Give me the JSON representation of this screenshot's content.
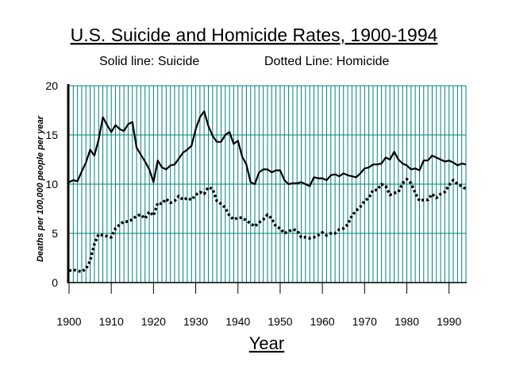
{
  "chart_data": {
    "type": "line",
    "title": "U.S. Suicide and Homicide Rates, 1900-1994",
    "legend": {
      "suicide_text": "Solid line: Suicide",
      "homicide_text": "Dotted Line: Homicide",
      "placement": "top"
    },
    "xlabel": "Year",
    "ylabel": "Deaths per 100,000 people per year",
    "xlim": [
      1900,
      1994
    ],
    "ylim": [
      0,
      20
    ],
    "x_ticks": [
      "1900",
      "1910",
      "1920",
      "1930",
      "1940",
      "1950",
      "1960",
      "1970",
      "1980",
      "1990"
    ],
    "y_ticks": [
      "0",
      "5",
      "10",
      "15",
      "20"
    ],
    "grid": "vertical every year, horizontal every 5",
    "colors": {
      "gridline": "#008080",
      "series": "#000000"
    },
    "series": [
      {
        "name": "Suicide",
        "style": "solid",
        "x": [
          1900,
          1901,
          1902,
          1903,
          1904,
          1905,
          1906,
          1907,
          1908,
          1909,
          1910,
          1911,
          1912,
          1913,
          1914,
          1915,
          1916,
          1917,
          1918,
          1919,
          1920,
          1921,
          1922,
          1923,
          1924,
          1925,
          1926,
          1927,
          1928,
          1929,
          1930,
          1931,
          1932,
          1933,
          1934,
          1935,
          1936,
          1937,
          1938,
          1939,
          1940,
          1941,
          1942,
          1943,
          1944,
          1945,
          1946,
          1947,
          1948,
          1949,
          1950,
          1951,
          1952,
          1953,
          1954,
          1955,
          1956,
          1957,
          1958,
          1959,
          1960,
          1961,
          1962,
          1963,
          1964,
          1965,
          1966,
          1967,
          1968,
          1969,
          1970,
          1971,
          1972,
          1973,
          1974,
          1975,
          1976,
          1977,
          1978,
          1979,
          1980,
          1981,
          1982,
          1983,
          1984,
          1985,
          1986,
          1987,
          1988,
          1989,
          1990,
          1991,
          1992,
          1993,
          1994
        ],
        "values": [
          10.2,
          10.4,
          10.3,
          11.3,
          12.2,
          13.5,
          12.9,
          14.5,
          16.8,
          16.0,
          15.3,
          16.0,
          15.6,
          15.4,
          16.1,
          16.3,
          13.7,
          13.0,
          12.3,
          11.5,
          10.2,
          12.4,
          11.7,
          11.5,
          11.9,
          12.0,
          12.6,
          13.2,
          13.5,
          13.9,
          15.6,
          16.8,
          17.4,
          15.9,
          14.9,
          14.3,
          14.3,
          15.0,
          15.3,
          14.1,
          14.4,
          12.8,
          12.0,
          10.2,
          10.0,
          11.2,
          11.5,
          11.5,
          11.2,
          11.4,
          11.4,
          10.4,
          10.0,
          10.1,
          10.1,
          10.2,
          10.0,
          9.8,
          10.7,
          10.6,
          10.6,
          10.4,
          10.9,
          11.0,
          10.8,
          11.1,
          10.9,
          10.8,
          10.7,
          11.1,
          11.6,
          11.7,
          12.0,
          12.0,
          12.1,
          12.7,
          12.5,
          13.3,
          12.5,
          12.1,
          11.9,
          11.5,
          11.6,
          11.4,
          12.4,
          12.4,
          12.9,
          12.7,
          12.5,
          12.3,
          12.4,
          12.2,
          11.9,
          12.1,
          12.0
        ]
      },
      {
        "name": "Homicide",
        "style": "dotted",
        "x": [
          1900,
          1901,
          1902,
          1903,
          1904,
          1905,
          1906,
          1907,
          1908,
          1909,
          1910,
          1911,
          1912,
          1913,
          1914,
          1915,
          1916,
          1917,
          1918,
          1919,
          1920,
          1921,
          1922,
          1923,
          1924,
          1925,
          1926,
          1927,
          1928,
          1929,
          1930,
          1931,
          1932,
          1933,
          1934,
          1935,
          1936,
          1937,
          1938,
          1939,
          1940,
          1941,
          1942,
          1943,
          1944,
          1945,
          1946,
          1947,
          1948,
          1949,
          1950,
          1951,
          1952,
          1953,
          1954,
          1955,
          1956,
          1957,
          1958,
          1959,
          1960,
          1961,
          1962,
          1963,
          1964,
          1965,
          1966,
          1967,
          1968,
          1969,
          1970,
          1971,
          1972,
          1973,
          1974,
          1975,
          1976,
          1977,
          1978,
          1979,
          1980,
          1981,
          1982,
          1983,
          1984,
          1985,
          1986,
          1987,
          1988,
          1989,
          1990,
          1991,
          1992,
          1993,
          1994
        ],
        "values": [
          1.2,
          1.3,
          1.2,
          1.1,
          1.4,
          2.2,
          3.9,
          4.9,
          4.8,
          4.7,
          4.6,
          5.5,
          5.9,
          6.2,
          6.2,
          6.4,
          6.8,
          6.9,
          6.5,
          7.2,
          6.8,
          8.1,
          8.0,
          8.5,
          8.1,
          8.3,
          8.8,
          8.4,
          8.6,
          8.4,
          8.9,
          9.2,
          9.0,
          9.7,
          9.5,
          8.3,
          8.0,
          7.6,
          6.8,
          6.4,
          6.6,
          6.6,
          6.3,
          6.0,
          5.7,
          6.1,
          6.4,
          6.9,
          6.5,
          5.7,
          5.5,
          5.0,
          5.2,
          5.4,
          5.3,
          4.6,
          4.6,
          4.5,
          4.6,
          4.8,
          5.1,
          4.8,
          5.0,
          5.0,
          5.4,
          5.5,
          5.9,
          6.8,
          7.3,
          7.7,
          8.3,
          8.6,
          9.4,
          9.4,
          10.0,
          9.8,
          8.9,
          9.1,
          9.2,
          10.1,
          10.5,
          10.1,
          9.1,
          8.3,
          8.4,
          8.4,
          9.0,
          8.6,
          9.0,
          9.2,
          9.9,
          10.4,
          10.0,
          9.8,
          9.5
        ]
      }
    ]
  }
}
